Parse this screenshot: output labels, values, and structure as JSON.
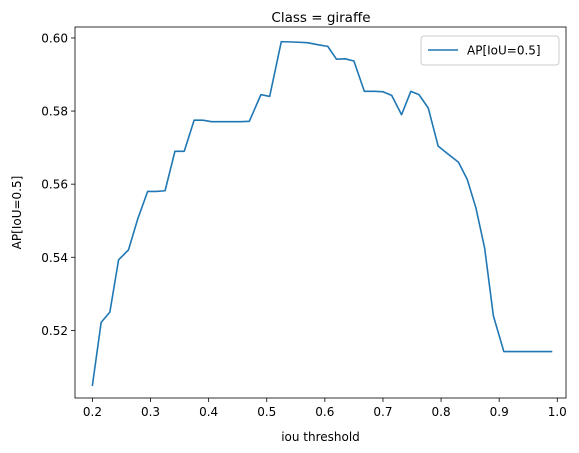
{
  "chart_data": {
    "type": "line",
    "title": "Class = giraffe",
    "xlabel": "iou threshold",
    "ylabel": "AP[IoU=0.5]",
    "xlim": [
      0.17,
      1.015
    ],
    "ylim": [
      0.5015,
      0.603
    ],
    "xticks": [
      0.2,
      0.3,
      0.4,
      0.5,
      0.6,
      0.7,
      0.8,
      0.9,
      1.0
    ],
    "xtick_labels": [
      "0.2",
      "0.3",
      "0.4",
      "0.5",
      "0.6",
      "0.7",
      "0.8",
      "0.9",
      "1.0"
    ],
    "yticks": [
      0.52,
      0.54,
      0.56,
      0.58,
      0.6
    ],
    "ytick_labels": [
      "0.52",
      "0.54",
      "0.56",
      "0.58",
      "0.60"
    ],
    "grid": false,
    "legend_position": "top-right",
    "series": [
      {
        "name": "AP[IoU=0.5]",
        "color": "#1f77b4",
        "x": [
          0.2,
          0.215,
          0.23,
          0.245,
          0.262,
          0.278,
          0.295,
          0.31,
          0.325,
          0.342,
          0.358,
          0.375,
          0.39,
          0.405,
          0.42,
          0.44,
          0.455,
          0.47,
          0.49,
          0.505,
          0.525,
          0.545,
          0.57,
          0.59,
          0.605,
          0.62,
          0.635,
          0.65,
          0.668,
          0.685,
          0.7,
          0.715,
          0.732,
          0.748,
          0.762,
          0.778,
          0.795,
          0.81,
          0.83,
          0.845,
          0.86,
          0.875,
          0.89,
          0.908,
          0.925,
          0.945,
          0.97,
          0.99
        ],
        "y": [
          0.505,
          0.5222,
          0.525,
          0.5393,
          0.542,
          0.5505,
          0.558,
          0.558,
          0.5582,
          0.569,
          0.569,
          0.5775,
          0.5775,
          0.5771,
          0.5771,
          0.5771,
          0.5771,
          0.5772,
          0.5845,
          0.584,
          0.599,
          0.5989,
          0.5987,
          0.5981,
          0.5977,
          0.5942,
          0.5943,
          0.5937,
          0.5854,
          0.5854,
          0.5853,
          0.5843,
          0.579,
          0.5854,
          0.5845,
          0.5808,
          0.5704,
          0.5685,
          0.566,
          0.5613,
          0.5535,
          0.5425,
          0.524,
          0.5142,
          0.5142,
          0.5142,
          0.5142,
          0.5142
        ]
      }
    ]
  }
}
